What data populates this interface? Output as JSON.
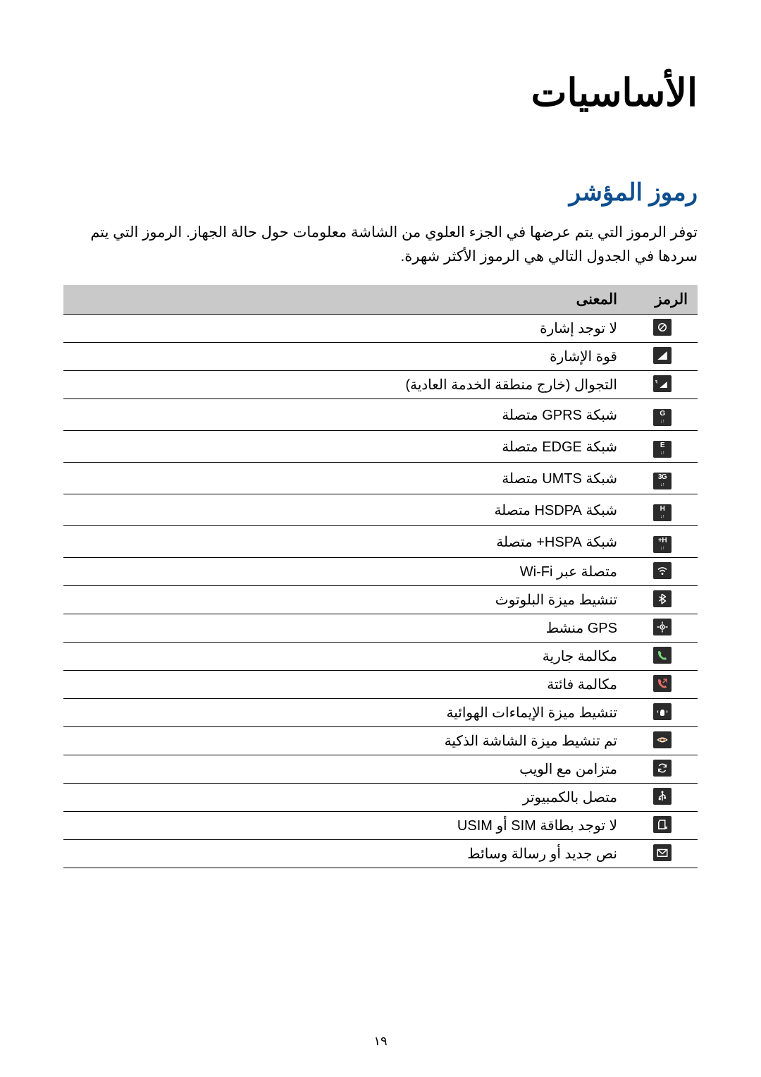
{
  "page": {
    "main_title": "الأساسيات",
    "section_title": "رموز المؤشر",
    "intro": "توفر الرموز التي يتم عرضها في الجزء العلوي من الشاشة معلومات حول حالة الجهاز. الرموز التي يتم سردها في الجدول التالي هي الرموز الأكثر شهرة.",
    "page_number": "١٩"
  },
  "table": {
    "headers": {
      "icon": "الرمز",
      "meaning": "المعنى"
    },
    "header_bg": "#c9c9c9",
    "border_color": "#000000",
    "icon_bg": "#2b2b2b",
    "icon_fg": "#ffffff",
    "rows": [
      {
        "icon_name": "no-signal-icon",
        "meaning": "لا توجد إشارة"
      },
      {
        "icon_name": "signal-strength-icon",
        "meaning": "قوة الإشارة"
      },
      {
        "icon_name": "roaming-icon",
        "meaning": "التجوال (خارج منطقة الخدمة العادية)"
      },
      {
        "icon_name": "gprs-icon",
        "meaning": "شبكة GPRS متصلة"
      },
      {
        "icon_name": "edge-icon",
        "meaning": "شبكة EDGE متصلة"
      },
      {
        "icon_name": "umts-icon",
        "meaning": "شبكة UMTS متصلة"
      },
      {
        "icon_name": "hsdpa-icon",
        "meaning": "شبكة HSDPA متصلة"
      },
      {
        "icon_name": "hspa-plus-icon",
        "meaning": "شبكة HSPA+ متصلة"
      },
      {
        "icon_name": "wifi-icon",
        "meaning": "متصلة عبر Wi-Fi"
      },
      {
        "icon_name": "bluetooth-icon",
        "meaning": "تنشيط ميزة البلوتوث"
      },
      {
        "icon_name": "gps-icon",
        "meaning": "GPS منشط"
      },
      {
        "icon_name": "call-active-icon",
        "meaning": "مكالمة جارية"
      },
      {
        "icon_name": "missed-call-icon",
        "meaning": "مكالمة فائتة"
      },
      {
        "icon_name": "air-gesture-icon",
        "meaning": "تنشيط ميزة الإيماءات الهوائية"
      },
      {
        "icon_name": "smart-screen-icon",
        "meaning": "تم تنشيط ميزة الشاشة الذكية"
      },
      {
        "icon_name": "sync-web-icon",
        "meaning": "متزامن مع الويب"
      },
      {
        "icon_name": "usb-icon",
        "meaning": "متصل بالكمبيوتر"
      },
      {
        "icon_name": "no-sim-icon",
        "meaning": "لا توجد بطاقة SIM أو USIM"
      },
      {
        "icon_name": "message-icon",
        "meaning": "نص جديد أو رسالة وسائط"
      }
    ]
  }
}
